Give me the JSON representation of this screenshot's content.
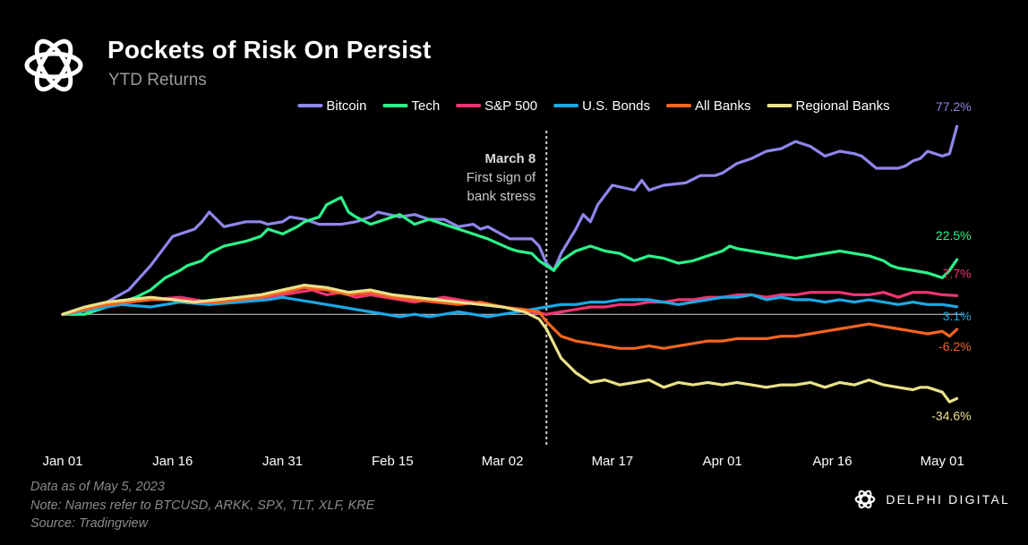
{
  "title": "Pockets of Risk On Persist",
  "subtitle": "YTD Returns",
  "notes": [
    "Data as of May 5, 2023",
    "Note: Names refer to BTCUSD, ARKK, SPX, TLT, XLF, KRE",
    "Source: Tradingview"
  ],
  "brand": "DELPHI DIGITAL",
  "chart_data": {
    "type": "line",
    "title": "Pockets of Risk On Persist",
    "subtitle": "YTD Returns",
    "x_tick_labels": [
      "Jan 01",
      "Jan 16",
      "Jan 31",
      "Feb 15",
      "Mar 02",
      "Mar 17",
      "Apr 01",
      "Apr 16",
      "May 01"
    ],
    "x_tick_days": [
      0,
      15,
      30,
      45,
      60,
      75,
      90,
      105,
      120
    ],
    "xlim": [
      0,
      124
    ],
    "ylim": [
      -40,
      85
    ],
    "legend_position": "top",
    "grid": false,
    "annotation": {
      "day": 66,
      "lines": [
        "March 8",
        "First sign of",
        "bank stress"
      ]
    },
    "series": [
      {
        "name": "Bitcoin",
        "color": "#8f86ec",
        "end_label": "77.2%",
        "x": [
          0,
          3,
          6,
          9,
          12,
          15,
          18,
          19,
          20,
          22,
          25,
          27,
          28,
          30,
          31,
          33,
          35,
          38,
          40,
          42,
          43,
          46,
          48,
          50,
          52,
          54,
          56,
          57,
          58,
          61,
          62,
          64,
          65,
          66,
          67,
          68,
          70,
          71,
          72,
          73,
          75,
          78,
          79,
          80,
          82,
          85,
          87,
          89,
          90,
          92,
          94,
          96,
          98,
          100,
          102,
          104,
          106,
          108,
          109,
          111,
          114,
          115,
          116,
          117,
          118,
          119,
          120,
          121,
          122
        ],
        "y": [
          0,
          0,
          5,
          10,
          20,
          32,
          35,
          38,
          42,
          36,
          38,
          38,
          37,
          38,
          40,
          39,
          37,
          37,
          38,
          40,
          42,
          40,
          41,
          39,
          39,
          36,
          37,
          35,
          36,
          31,
          31,
          31,
          28,
          21,
          18,
          25,
          35,
          41,
          38,
          45,
          53,
          51,
          55,
          51,
          53,
          54,
          57,
          57,
          58,
          62,
          64,
          67,
          68,
          71,
          69,
          65,
          67,
          66,
          65,
          60,
          60,
          61,
          63,
          64,
          67,
          66,
          65,
          66,
          77.2
        ]
      },
      {
        "name": "Tech",
        "color": "#2bf58a",
        "end_label": "22.5%",
        "x": [
          0,
          3,
          6,
          8,
          10,
          12,
          14,
          16,
          17,
          19,
          20,
          22,
          25,
          27,
          28,
          30,
          32,
          33,
          35,
          36,
          38,
          39,
          40,
          42,
          44,
          46,
          48,
          50,
          52,
          54,
          56,
          57,
          58,
          61,
          62,
          64,
          65,
          66,
          67,
          68,
          70,
          72,
          74,
          76,
          78,
          80,
          82,
          84,
          86,
          88,
          90,
          91,
          92,
          94,
          96,
          98,
          100,
          102,
          104,
          106,
          108,
          110,
          112,
          113,
          114,
          116,
          118,
          119,
          120,
          121,
          122
        ],
        "y": [
          0,
          0,
          3,
          5,
          7,
          10,
          15,
          18,
          20,
          22,
          25,
          28,
          30,
          32,
          35,
          33,
          36,
          38,
          40,
          45,
          48,
          42,
          40,
          37,
          39,
          41,
          37,
          39,
          37,
          35,
          33,
          32,
          31,
          27,
          26,
          25,
          22,
          20,
          18,
          22,
          26,
          28,
          26,
          25,
          22,
          24,
          23,
          21,
          22,
          24,
          26,
          28,
          27,
          26,
          25,
          24,
          23,
          24,
          25,
          26,
          25,
          24,
          22,
          20,
          19,
          18,
          17,
          16,
          15,
          18,
          22.5
        ]
      },
      {
        "name": "S&P 500",
        "color": "#f5346f",
        "end_label": "7.7%",
        "x": [
          0,
          4,
          8,
          12,
          16,
          20,
          24,
          28,
          30,
          32,
          34,
          36,
          38,
          40,
          42,
          44,
          46,
          48,
          50,
          52,
          54,
          56,
          58,
          60,
          62,
          64,
          66,
          68,
          70,
          72,
          74,
          76,
          78,
          80,
          82,
          84,
          86,
          88,
          90,
          92,
          94,
          96,
          98,
          100,
          102,
          104,
          106,
          108,
          110,
          112,
          114,
          116,
          118,
          120,
          122
        ],
        "y": [
          0,
          3,
          5,
          6,
          7,
          5,
          6,
          7,
          8,
          9,
          10,
          8,
          9,
          7,
          8,
          7,
          6,
          5,
          6,
          7,
          6,
          5,
          4,
          3,
          2,
          1,
          0,
          1,
          2,
          3,
          3,
          4,
          4,
          5,
          5,
          6,
          6,
          7,
          7,
          8,
          8,
          7,
          8,
          8,
          9,
          9,
          9,
          8,
          8,
          9,
          7,
          9,
          9,
          8,
          7.7
        ]
      },
      {
        "name": "U.S. Bonds",
        "color": "#1aa9e5",
        "end_label": "3.1%",
        "x": [
          0,
          4,
          8,
          12,
          16,
          20,
          24,
          28,
          30,
          32,
          34,
          36,
          38,
          40,
          42,
          44,
          46,
          48,
          50,
          52,
          54,
          56,
          58,
          60,
          62,
          64,
          66,
          68,
          70,
          72,
          74,
          76,
          78,
          80,
          82,
          84,
          86,
          88,
          90,
          92,
          94,
          96,
          98,
          100,
          102,
          104,
          106,
          108,
          110,
          112,
          114,
          116,
          118,
          120,
          122
        ],
        "y": [
          0,
          2,
          4,
          3,
          5,
          4,
          5,
          6,
          7,
          6,
          5,
          4,
          3,
          2,
          1,
          0,
          -1,
          0,
          -1,
          0,
          1,
          0,
          -1,
          0,
          1,
          2,
          3,
          4,
          4,
          5,
          5,
          6,
          6,
          6,
          5,
          4,
          5,
          6,
          7,
          7,
          8,
          6,
          7,
          6,
          6,
          5,
          6,
          5,
          6,
          5,
          4,
          5,
          4,
          4,
          3.1
        ]
      },
      {
        "name": "All Banks",
        "color": "#f5651f",
        "end_label": "-6.2%",
        "x": [
          0,
          3,
          6,
          9,
          12,
          15,
          18,
          21,
          24,
          27,
          30,
          33,
          36,
          39,
          42,
          45,
          48,
          51,
          54,
          57,
          60,
          63,
          65,
          66,
          67,
          68,
          70,
          72,
          74,
          76,
          78,
          80,
          82,
          84,
          86,
          88,
          90,
          92,
          94,
          96,
          98,
          100,
          102,
          104,
          106,
          108,
          110,
          112,
          114,
          116,
          118,
          120,
          121,
          122
        ],
        "y": [
          0,
          2,
          4,
          5,
          6,
          6,
          5,
          5,
          6,
          7,
          9,
          11,
          10,
          8,
          9,
          7,
          6,
          5,
          4,
          5,
          3,
          2,
          1,
          -3,
          -6,
          -9,
          -11,
          -12,
          -13,
          -14,
          -14,
          -13,
          -14,
          -13,
          -12,
          -11,
          -11,
          -10,
          -10,
          -10,
          -9,
          -9,
          -8,
          -7,
          -6,
          -5,
          -4,
          -5,
          -6,
          -7,
          -8,
          -7,
          -9,
          -6.2
        ]
      },
      {
        "name": "Regional Banks",
        "color": "#eae28a",
        "end_label": "-34.6%",
        "x": [
          0,
          3,
          6,
          9,
          12,
          15,
          18,
          21,
          24,
          27,
          30,
          33,
          36,
          39,
          42,
          45,
          48,
          51,
          54,
          57,
          60,
          63,
          65,
          66,
          67,
          68,
          70,
          72,
          74,
          76,
          78,
          80,
          82,
          84,
          86,
          88,
          90,
          92,
          94,
          96,
          98,
          100,
          102,
          104,
          106,
          108,
          110,
          112,
          114,
          116,
          117,
          118,
          120,
          121,
          122
        ],
        "y": [
          0,
          3,
          5,
          6,
          7,
          6,
          5,
          6,
          7,
          8,
          10,
          12,
          11,
          9,
          10,
          8,
          7,
          6,
          5,
          4,
          3,
          1,
          -2,
          -6,
          -12,
          -18,
          -24,
          -28,
          -27,
          -29,
          -28,
          -27,
          -30,
          -28,
          -29,
          -28,
          -29,
          -28,
          -29,
          -30,
          -29,
          -29,
          -28,
          -30,
          -28,
          -29,
          -27,
          -29,
          -30,
          -31,
          -30,
          -30,
          -32,
          -36,
          -34.6
        ]
      }
    ]
  }
}
